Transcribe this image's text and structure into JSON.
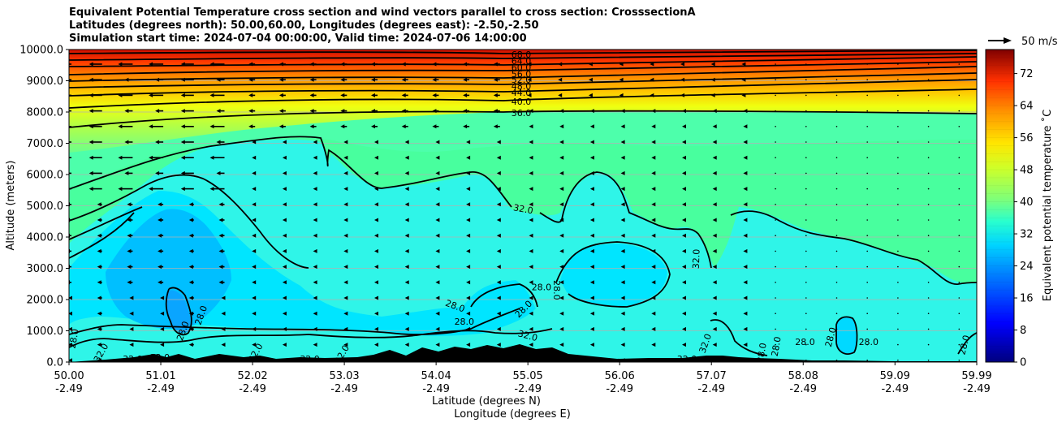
{
  "title_lines": [
    "Equivalent Potential Temperature cross section and wind vectors parallel to cross section: CrosssectionA",
    "Latitudes (degrees north): 50.00,60.00, Longitudes (degrees east): -2.50,-2.50",
    "Simulation start time: 2024-07-04 00:00:00, Valid time: 2024-07-06 14:00:00"
  ],
  "chart_data": {
    "type": "contour",
    "title": "Equivalent Potential Temperature cross section and wind vectors parallel to cross section: CrosssectionA",
    "ylabel": "Altitude (meters)",
    "xlabel_lat": "Latitude (degrees N)",
    "xlabel_lon": "Longitude (degrees E)",
    "ylim": [
      0,
      10000
    ],
    "y_ticks": [
      "0.0",
      "1000.0",
      "2000.0",
      "3000.0",
      "4000.0",
      "5000.0",
      "6000.0",
      "7000.0",
      "8000.0",
      "9000.0",
      "10000.0"
    ],
    "y_tick_values": [
      0,
      1000,
      2000,
      3000,
      4000,
      5000,
      6000,
      7000,
      8000,
      9000,
      10000
    ],
    "x_ticks_lat": [
      "50.00",
      "51.01",
      "52.02",
      "53.03",
      "54.04",
      "55.05",
      "56.06",
      "57.07",
      "58.08",
      "59.09",
      "59.99"
    ],
    "x_ticks_lon": [
      "-2.49",
      "-2.49",
      "-2.49",
      "-2.49",
      "-2.49",
      "-2.49",
      "-2.49",
      "-2.49",
      "-2.49",
      "-2.49",
      "-2.49"
    ],
    "x_tick_values": [
      50.0,
      51.01,
      52.02,
      53.03,
      54.04,
      55.05,
      56.06,
      57.07,
      58.08,
      59.09,
      59.99
    ],
    "xlim": [
      50.0,
      59.99
    ],
    "colorbar": {
      "label": "Equivalent potential temperature $^\\circ$C",
      "label_display": "Equivalent potential temperature ˚C",
      "ticks": [
        "0",
        "8",
        "16",
        "24",
        "32",
        "40",
        "48",
        "56",
        "64",
        "72"
      ],
      "tick_values": [
        0,
        8,
        16,
        24,
        32,
        40,
        48,
        56,
        64,
        72
      ],
      "range": [
        0,
        78
      ]
    },
    "contour_labels_upper": [
      "68.0",
      "64.0",
      "60.0",
      "56.0",
      "52.0",
      "48.0",
      "44.0",
      "40.0",
      "36.0"
    ],
    "contour_labels_upper_values": [
      68,
      64,
      60,
      56,
      52,
      48,
      44,
      40,
      36
    ],
    "contour_labels_lower": [
      {
        "text": "32.0",
        "lat": 55.0,
        "alt": 4900,
        "rot": 10
      },
      {
        "text": "32.0",
        "lat": 56.9,
        "alt": 3300,
        "rot": -88
      },
      {
        "text": "28.0",
        "lat": 55.2,
        "alt": 2400,
        "rot": 0
      },
      {
        "text": "28.0",
        "lat": 55.37,
        "alt": 2300,
        "rot": 90
      },
      {
        "text": "28.0",
        "lat": 55.0,
        "alt": 1700,
        "rot": -45
      },
      {
        "text": "28.0",
        "lat": 54.25,
        "alt": 1800,
        "rot": 20
      },
      {
        "text": "28.0",
        "lat": 54.35,
        "alt": 1300,
        "rot": 0
      },
      {
        "text": "32.0",
        "lat": 55.05,
        "alt": 850,
        "rot": 15
      },
      {
        "text": "28.0",
        "lat": 51.45,
        "alt": 1500,
        "rot": -70
      },
      {
        "text": "28.0",
        "lat": 51.25,
        "alt": 1000,
        "rot": -70
      },
      {
        "text": "28.0",
        "lat": 50.05,
        "alt": 750,
        "rot": -80
      },
      {
        "text": "32.0",
        "lat": 50.35,
        "alt": 300,
        "rot": -60
      },
      {
        "text": "32.0",
        "lat": 50.7,
        "alt": 100,
        "rot": 0
      },
      {
        "text": "32.0",
        "lat": 51.0,
        "alt": 150,
        "rot": 0
      },
      {
        "text": "32.0",
        "lat": 52.65,
        "alt": 100,
        "rot": 0
      },
      {
        "text": "32.0",
        "lat": 53.0,
        "alt": 250,
        "rot": -60
      },
      {
        "text": "32.0",
        "lat": 52.05,
        "alt": 300,
        "rot": -60
      },
      {
        "text": "32.0",
        "lat": 56.8,
        "alt": 100,
        "rot": 0
      },
      {
        "text": "32.0",
        "lat": 57.0,
        "alt": 600,
        "rot": -70
      },
      {
        "text": "28.0",
        "lat": 57.62,
        "alt": 300,
        "rot": -80
      },
      {
        "text": "28.0",
        "lat": 57.78,
        "alt": 500,
        "rot": -80
      },
      {
        "text": "28.0",
        "lat": 58.1,
        "alt": 650,
        "rot": 0
      },
      {
        "text": "28.0",
        "lat": 58.38,
        "alt": 800,
        "rot": -75
      },
      {
        "text": "28.0",
        "lat": 58.8,
        "alt": 650,
        "rot": 0
      },
      {
        "text": "28.0",
        "lat": 59.85,
        "alt": 550,
        "rot": -75
      }
    ],
    "wind_reference": {
      "label": "50 m/s",
      "value": 50
    }
  }
}
